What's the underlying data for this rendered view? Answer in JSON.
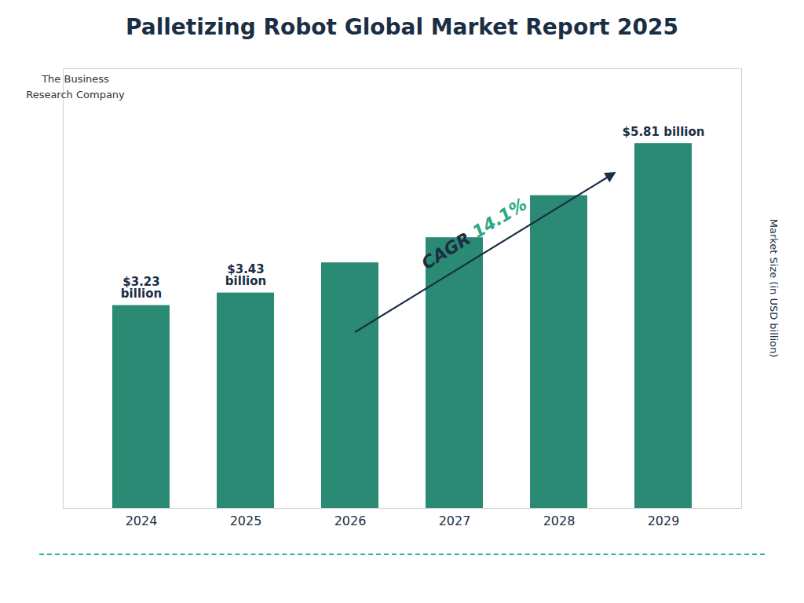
{
  "chart_data": {
    "type": "bar",
    "title": "Palletizing Robot Global Market Report 2025",
    "categories": [
      "2024",
      "2025",
      "2026",
      "2027",
      "2028",
      "2029"
    ],
    "values": [
      3.23,
      3.43,
      3.91,
      4.31,
      4.98,
      5.81
    ],
    "value_labels": [
      "$3.23\nbillion",
      "$3.43\nbillion",
      null,
      null,
      null,
      "$5.81 billion"
    ],
    "color": "#2a8a74",
    "ylabel": "Market Size (in USD billion)",
    "ylim": [
      0,
      7.0
    ],
    "tick_labels": "x",
    "grid": false,
    "annotations": [
      {
        "text": "CAGR ",
        "color": "#1a2e44"
      },
      {
        "text": "14.1%",
        "color": "#2aaa7f"
      },
      {
        "text": "The Business\nResearch Company"
      }
    ]
  }
}
